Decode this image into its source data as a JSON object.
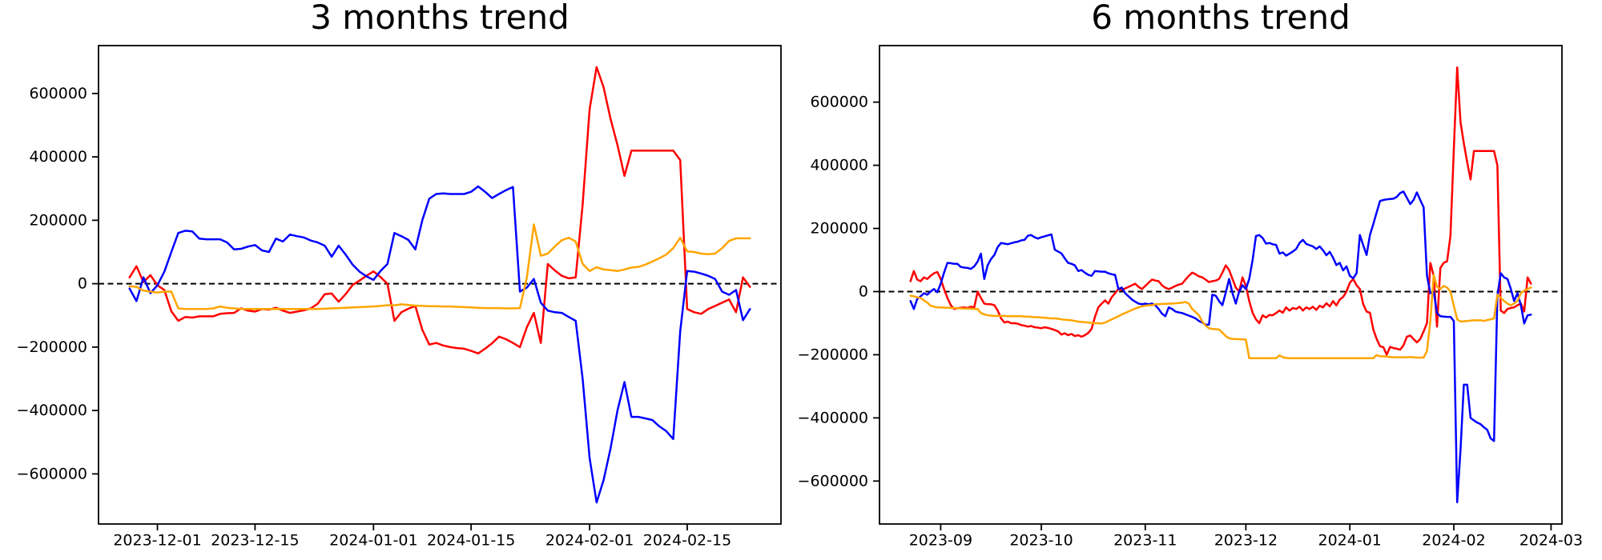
{
  "chart_data": [
    {
      "type": "line",
      "title": "3 months trend",
      "x_start_date": "2023-11-27",
      "grid": false,
      "legend": null,
      "zero_line_dashed": true,
      "ylim_thousands": [
        -758,
        751
      ],
      "x_ticks": [
        {
          "label": "2023-12-01",
          "day_index": 4
        },
        {
          "label": "2023-12-15",
          "day_index": 18
        },
        {
          "label": "2024-01-01",
          "day_index": 35
        },
        {
          "label": "2024-01-15",
          "day_index": 49
        },
        {
          "label": "2024-02-01",
          "day_index": 66
        },
        {
          "label": "2024-02-15",
          "day_index": 80
        }
      ],
      "y_ticks": [
        {
          "label": "600000",
          "value": 600
        },
        {
          "label": "400000",
          "value": 400
        },
        {
          "label": "200000",
          "value": 200
        },
        {
          "label": "0",
          "value": 0
        },
        {
          "label": "−200000",
          "value": -200
        },
        {
          "label": "−400000",
          "value": -400
        },
        {
          "label": "−600000",
          "value": -600
        }
      ],
      "series": [
        {
          "name": "red-series",
          "color": "#ff0000",
          "values_thousands": [
            20,
            55,
            5,
            27,
            -5,
            -20,
            -87,
            -117,
            -105,
            -107,
            -103,
            -103,
            -103,
            -95,
            -93,
            -92,
            -78,
            -85,
            -88,
            -80,
            -82,
            -76,
            -85,
            -92,
            -88,
            -84,
            -78,
            -63,
            -33,
            -31,
            -57,
            -33,
            -4,
            10,
            25,
            39,
            21,
            0,
            -117,
            -90,
            -79,
            -70,
            -145,
            -192,
            -187,
            -195,
            -200,
            -203,
            -205,
            -212,
            -220,
            -205,
            -188,
            -167,
            -175,
            -187,
            -200,
            -137,
            -92,
            -187,
            62,
            42,
            25,
            17,
            20,
            250,
            550,
            683,
            620,
            520,
            437,
            340,
            420,
            420,
            420,
            420,
            420,
            420,
            420,
            390,
            -80,
            -90,
            -95,
            -80,
            -70,
            -60,
            -50,
            -90,
            20,
            -10
          ]
        },
        {
          "name": "blue-series",
          "color": "#0000ff",
          "values_thousands": [
            -15,
            -55,
            20,
            -30,
            -5,
            38,
            100,
            160,
            167,
            165,
            142,
            140,
            140,
            140,
            130,
            108,
            110,
            117,
            122,
            105,
            100,
            142,
            133,
            155,
            150,
            146,
            136,
            130,
            120,
            85,
            120,
            92,
            60,
            38,
            23,
            12,
            40,
            62,
            160,
            150,
            138,
            108,
            200,
            268,
            283,
            285,
            283,
            283,
            283,
            290,
            307,
            290,
            270,
            283,
            295,
            305,
            -25,
            -12,
            15,
            -60,
            -85,
            -90,
            -92,
            -105,
            -117,
            -300,
            -550,
            -690,
            -620,
            -520,
            -400,
            -310,
            -420,
            -420,
            -425,
            -430,
            -450,
            -465,
            -490,
            -150,
            40,
            38,
            32,
            25,
            15,
            -25,
            -35,
            -20,
            -115,
            -80
          ]
        },
        {
          "name": "orange-series",
          "color": "#ffa500",
          "values_thousands": [
            -8,
            -10,
            -22,
            -25,
            -28,
            -25,
            -25,
            -78,
            -80,
            -80,
            -80,
            -80,
            -78,
            -72,
            -76,
            -78,
            -80,
            -80,
            -80,
            -80,
            -80,
            -80,
            -80,
            -80,
            -80,
            -80,
            -80,
            -80,
            -79,
            -78,
            -77,
            -76,
            -75,
            -74,
            -73,
            -72,
            -70,
            -68,
            -68,
            -65,
            -67,
            -69,
            -70,
            -71,
            -71,
            -72,
            -72,
            -73,
            -74,
            -75,
            -76,
            -77,
            -77,
            -77,
            -78,
            -78,
            -77,
            20,
            187,
            88,
            95,
            117,
            137,
            145,
            133,
            62,
            40,
            52,
            45,
            43,
            40,
            45,
            51,
            53,
            60,
            70,
            80,
            92,
            112,
            145,
            102,
            100,
            95,
            93,
            95,
            112,
            135,
            143,
            143,
            143
          ]
        }
      ]
    },
    {
      "type": "line",
      "title": "6 months trend",
      "x_start_date": "2023-08-23",
      "grid": false,
      "legend": null,
      "zero_line_dashed": true,
      "ylim_thousands": [
        -736,
        779
      ],
      "x_ticks": [
        {
          "label": "2023-09",
          "day_index": 9
        },
        {
          "label": "2023-10",
          "day_index": 39
        },
        {
          "label": "2023-11",
          "day_index": 70
        },
        {
          "label": "2023-12",
          "day_index": 100
        },
        {
          "label": "2024-01",
          "day_index": 131
        },
        {
          "label": "2024-02",
          "day_index": 162
        },
        {
          "label": "2024-03",
          "day_index": 191
        }
      ],
      "y_ticks": [
        {
          "label": "600000",
          "value": 600
        },
        {
          "label": "400000",
          "value": 400
        },
        {
          "label": "200000",
          "value": 200
        },
        {
          "label": "0",
          "value": 0
        },
        {
          "label": "−200000",
          "value": -200
        },
        {
          "label": "−400000",
          "value": -400
        },
        {
          "label": "−600000",
          "value": -600
        }
      ],
      "series": [
        {
          "name": "red-series",
          "color": "#ff0000",
          "values_thousands": [
            33,
            65,
            38,
            33,
            45,
            40,
            50,
            58,
            62,
            40,
            8,
            -20,
            -43,
            -55,
            -53,
            -51,
            -50,
            -52,
            -48,
            -50,
            0,
            -20,
            -38,
            -40,
            -40,
            -43,
            -60,
            -85,
            -98,
            -95,
            -100,
            -100,
            -102,
            -106,
            -108,
            -111,
            -109,
            -113,
            -114,
            -116,
            -113,
            -115,
            -118,
            -122,
            -126,
            -136,
            -132,
            -138,
            -134,
            -141,
            -138,
            -143,
            -138,
            -131,
            -118,
            -80,
            -50,
            -38,
            -28,
            -38,
            -18,
            -5,
            8,
            5,
            10,
            15,
            20,
            25,
            15,
            8,
            18,
            28,
            38,
            35,
            33,
            20,
            12,
            8,
            12,
            18,
            22,
            25,
            38,
            50,
            60,
            55,
            48,
            45,
            38,
            30,
            33,
            35,
            40,
            60,
            83,
            68,
            40,
            13,
            0,
            45,
            18,
            -30,
            -67,
            -88,
            -100,
            -75,
            -82,
            -74,
            -75,
            -68,
            -60,
            -67,
            -50,
            -60,
            -52,
            -55,
            -48,
            -60,
            -50,
            -55,
            -48,
            -58,
            -45,
            -50,
            -37,
            -47,
            -30,
            -44,
            -25,
            -17,
            0,
            28,
            40,
            20,
            8,
            -40,
            -63,
            -67,
            -120,
            -150,
            -173,
            -176,
            -200,
            -175,
            -179,
            -181,
            -184,
            -170,
            -143,
            -139,
            -150,
            -161,
            -150,
            -126,
            -100,
            91,
            50,
            -111,
            75,
            91,
            96,
            176,
            450,
            710,
            536,
            470,
            410,
            355,
            445,
            445,
            445,
            445,
            445,
            445,
            445,
            400,
            -60,
            -68,
            -55,
            -52,
            -50,
            -43,
            -38,
            -63,
            45,
            25
          ]
        },
        {
          "name": "blue-series",
          "color": "#0000ff",
          "values_thousands": [
            -30,
            -55,
            -23,
            -15,
            -5,
            -10,
            0,
            8,
            -2,
            25,
            60,
            91,
            90,
            88,
            88,
            78,
            76,
            75,
            72,
            80,
            95,
            120,
            40,
            83,
            103,
            116,
            141,
            154,
            152,
            150,
            153,
            156,
            158,
            162,
            164,
            177,
            179,
            172,
            168,
            172,
            175,
            178,
            181,
            133,
            127,
            121,
            105,
            91,
            88,
            83,
            65,
            68,
            60,
            53,
            50,
            65,
            64,
            63,
            63,
            58,
            55,
            53,
            8,
            13,
            -5,
            -15,
            -25,
            -32,
            -38,
            -40,
            -38,
            -40,
            -38,
            -43,
            -55,
            -70,
            -78,
            -50,
            -55,
            -63,
            -66,
            -68,
            -72,
            -76,
            -80,
            -85,
            -93,
            -98,
            -105,
            -105,
            -10,
            -13,
            -30,
            -43,
            -3,
            40,
            -5,
            -38,
            0,
            20,
            8,
            40,
            100,
            176,
            179,
            170,
            152,
            154,
            150,
            148,
            120,
            124,
            114,
            120,
            127,
            135,
            154,
            164,
            151,
            147,
            143,
            135,
            143,
            131,
            115,
            126,
            107,
            84,
            91,
            67,
            80,
            50,
            42,
            58,
            179,
            147,
            116,
            179,
            214,
            251,
            287,
            290,
            292,
            293,
            294,
            300,
            312,
            317,
            297,
            277,
            290,
            314,
            290,
            267,
            50,
            -5,
            0,
            -68,
            -78,
            -79,
            -80,
            -80,
            -93,
            -667,
            -500,
            -295,
            -295,
            -400,
            -408,
            -415,
            -420,
            -430,
            -438,
            -465,
            -473,
            -13,
            58,
            45,
            40,
            8,
            -30,
            -5,
            -43,
            -101,
            -75,
            -73
          ]
        },
        {
          "name": "orange-series",
          "color": "#ffa500",
          "values_thousands": [
            -13,
            -15,
            -18,
            -20,
            -28,
            -35,
            -45,
            -48,
            -50,
            -50,
            -51,
            -51,
            -52,
            -52,
            -53,
            -53,
            -54,
            -54,
            -54,
            -55,
            -55,
            -68,
            -72,
            -75,
            -76,
            -77,
            -77,
            -77,
            -77,
            -78,
            -78,
            -78,
            -78,
            -78,
            -79,
            -79,
            -80,
            -81,
            -81,
            -82,
            -83,
            -84,
            -85,
            -85,
            -86,
            -88,
            -89,
            -90,
            -91,
            -93,
            -95,
            -96,
            -97,
            -98,
            -99,
            -100,
            -100,
            -101,
            -98,
            -93,
            -88,
            -83,
            -78,
            -72,
            -68,
            -63,
            -58,
            -54,
            -50,
            -47,
            -45,
            -43,
            -43,
            -40,
            -40,
            -39,
            -39,
            -38,
            -38,
            -37,
            -36,
            -35,
            -33,
            -38,
            -55,
            -65,
            -75,
            -95,
            -108,
            -116,
            -118,
            -119,
            -120,
            -130,
            -141,
            -148,
            -150,
            -150,
            -151,
            -151,
            -152,
            -211,
            -211,
            -211,
            -211,
            -211,
            -211,
            -211,
            -211,
            -211,
            -202,
            -208,
            -210,
            -211,
            -211,
            -211,
            -211,
            -211,
            -211,
            -211,
            -211,
            -211,
            -211,
            -211,
            -211,
            -211,
            -211,
            -211,
            -211,
            -211,
            -211,
            -211,
            -211,
            -211,
            -211,
            -211,
            -211,
            -211,
            -211,
            -201,
            -205,
            -205,
            -206,
            -207,
            -208,
            -208,
            -208,
            -208,
            -208,
            -207,
            -208,
            -209,
            -209,
            -209,
            -188,
            -93,
            53,
            15,
            8,
            18,
            13,
            0,
            -45,
            -88,
            -95,
            -94,
            -93,
            -92,
            -91,
            -91,
            -91,
            -93,
            -90,
            -88,
            -85,
            -10,
            -20,
            -30,
            -38,
            -43,
            -38,
            -30,
            -5,
            3,
            8,
            13
          ]
        }
      ]
    }
  ]
}
